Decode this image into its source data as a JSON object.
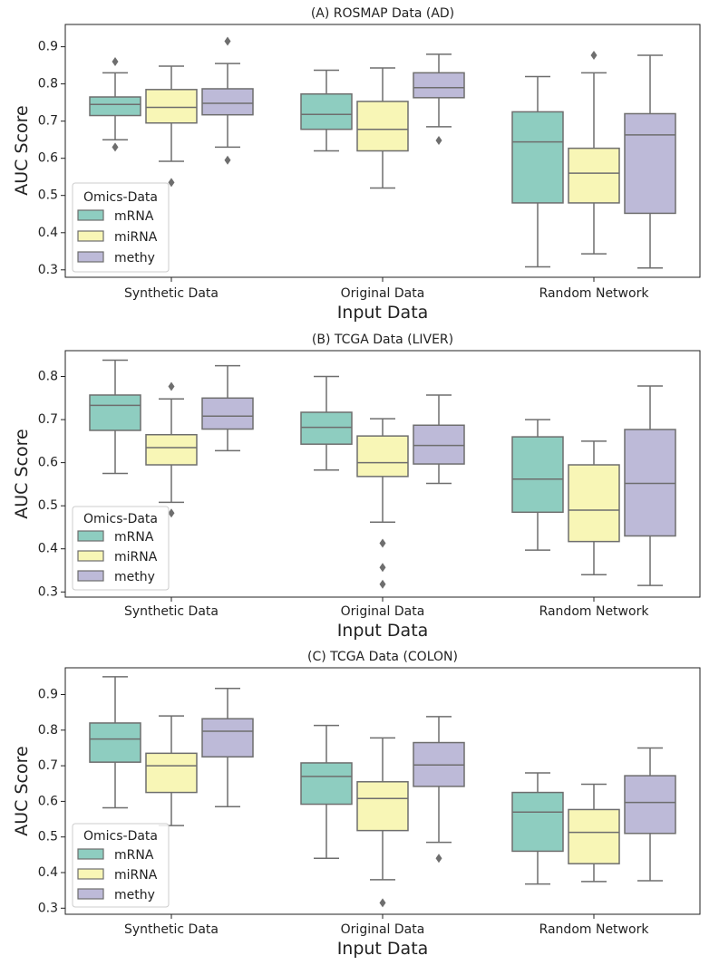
{
  "legend": {
    "title": "Omics-Data",
    "entries": [
      "mRNA",
      "miRNA",
      "methy"
    ]
  },
  "colors": {
    "mRNA": "#8ecdc0",
    "miRNA": "#f8f6b6",
    "methy": "#bdbad8",
    "edge": "#6e6e6e"
  },
  "chart_data": [
    {
      "type": "box",
      "title": "(A) ROSMAP Data (AD)",
      "xlabel": "Input Data",
      "ylabel": "AUC Score",
      "ylim": [
        0.28,
        0.96
      ],
      "yticks": [
        0.3,
        0.4,
        0.5,
        0.6,
        0.7,
        0.8,
        0.9
      ],
      "ytick_labels": [
        "0.3",
        "0.4",
        "0.5",
        "0.6",
        "0.7",
        "0.8",
        "0.9"
      ],
      "categories": [
        "Synthetic Data",
        "Original Data",
        "Random Network"
      ],
      "legend_position": "lower-left",
      "series": [
        {
          "name": "mRNA",
          "boxes": [
            {
              "whislo": 0.65,
              "q1": 0.715,
              "med": 0.745,
              "q3": 0.765,
              "whishi": 0.83,
              "fliers": [
                0.63,
                0.86
              ]
            },
            {
              "whislo": 0.62,
              "q1": 0.678,
              "med": 0.718,
              "q3": 0.773,
              "whishi": 0.837,
              "fliers": []
            },
            {
              "whislo": 0.308,
              "q1": 0.48,
              "med": 0.644,
              "q3": 0.725,
              "whishi": 0.82,
              "fliers": []
            }
          ]
        },
        {
          "name": "miRNA",
          "boxes": [
            {
              "whislo": 0.592,
              "q1": 0.695,
              "med": 0.737,
              "q3": 0.785,
              "whishi": 0.848,
              "fliers": [
                0.535
              ]
            },
            {
              "whislo": 0.52,
              "q1": 0.62,
              "med": 0.678,
              "q3": 0.753,
              "whishi": 0.843,
              "fliers": []
            },
            {
              "whislo": 0.343,
              "q1": 0.48,
              "med": 0.56,
              "q3": 0.627,
              "whishi": 0.83,
              "fliers": [
                0.877
              ]
            }
          ]
        },
        {
          "name": "methy",
          "boxes": [
            {
              "whislo": 0.63,
              "q1": 0.717,
              "med": 0.748,
              "q3": 0.787,
              "whishi": 0.855,
              "fliers": [
                0.595,
                0.915
              ]
            },
            {
              "whislo": 0.685,
              "q1": 0.763,
              "med": 0.79,
              "q3": 0.83,
              "whishi": 0.88,
              "fliers": [
                0.648
              ]
            },
            {
              "whislo": 0.305,
              "q1": 0.452,
              "med": 0.663,
              "q3": 0.72,
              "whishi": 0.877,
              "fliers": []
            }
          ]
        }
      ]
    },
    {
      "type": "box",
      "title": "(B) TCGA Data (LIVER)",
      "xlabel": "Input Data",
      "ylabel": "AUC Score",
      "ylim": [
        0.288,
        0.86
      ],
      "yticks": [
        0.3,
        0.4,
        0.5,
        0.6,
        0.7,
        0.8
      ],
      "ytick_labels": [
        "0.3",
        "0.4",
        "0.5",
        "0.6",
        "0.7",
        "0.8"
      ],
      "categories": [
        "Synthetic Data",
        "Original Data",
        "Random Network"
      ],
      "legend_position": "lower-left",
      "series": [
        {
          "name": "mRNA",
          "boxes": [
            {
              "whislo": 0.575,
              "q1": 0.675,
              "med": 0.733,
              "q3": 0.757,
              "whishi": 0.838,
              "fliers": []
            },
            {
              "whislo": 0.583,
              "q1": 0.643,
              "med": 0.682,
              "q3": 0.717,
              "whishi": 0.8,
              "fliers": []
            },
            {
              "whislo": 0.397,
              "q1": 0.485,
              "med": 0.562,
              "q3": 0.66,
              "whishi": 0.7,
              "fliers": []
            }
          ]
        },
        {
          "name": "miRNA",
          "boxes": [
            {
              "whislo": 0.508,
              "q1": 0.595,
              "med": 0.635,
              "q3": 0.665,
              "whishi": 0.748,
              "fliers": [
                0.483,
                0.777
              ]
            },
            {
              "whislo": 0.462,
              "q1": 0.568,
              "med": 0.6,
              "q3": 0.662,
              "whishi": 0.702,
              "fliers": [
                0.318,
                0.357,
                0.413
              ]
            },
            {
              "whislo": 0.34,
              "q1": 0.417,
              "med": 0.49,
              "q3": 0.595,
              "whishi": 0.65,
              "fliers": []
            }
          ]
        },
        {
          "name": "methy",
          "boxes": [
            {
              "whislo": 0.628,
              "q1": 0.678,
              "med": 0.708,
              "q3": 0.75,
              "whishi": 0.825,
              "fliers": []
            },
            {
              "whislo": 0.552,
              "q1": 0.597,
              "med": 0.64,
              "q3": 0.687,
              "whishi": 0.757,
              "fliers": []
            },
            {
              "whislo": 0.315,
              "q1": 0.43,
              "med": 0.552,
              "q3": 0.677,
              "whishi": 0.778,
              "fliers": []
            }
          ]
        }
      ]
    },
    {
      "type": "box",
      "title": "(C) TCGA Data (COLON)",
      "xlabel": "Input Data",
      "ylabel": "AUC Score",
      "ylim": [
        0.283,
        0.975
      ],
      "yticks": [
        0.3,
        0.4,
        0.5,
        0.6,
        0.7,
        0.8,
        0.9
      ],
      "ytick_labels": [
        "0.3",
        "0.4",
        "0.5",
        "0.6",
        "0.7",
        "0.8",
        "0.9"
      ],
      "categories": [
        "Synthetic Data",
        "Original Data",
        "Random Network"
      ],
      "legend_position": "lower-left",
      "series": [
        {
          "name": "mRNA",
          "boxes": [
            {
              "whislo": 0.582,
              "q1": 0.71,
              "med": 0.775,
              "q3": 0.82,
              "whishi": 0.95,
              "fliers": []
            },
            {
              "whislo": 0.44,
              "q1": 0.592,
              "med": 0.67,
              "q3": 0.708,
              "whishi": 0.813,
              "fliers": []
            },
            {
              "whislo": 0.368,
              "q1": 0.46,
              "med": 0.57,
              "q3": 0.625,
              "whishi": 0.68,
              "fliers": []
            }
          ]
        },
        {
          "name": "miRNA",
          "boxes": [
            {
              "whislo": 0.532,
              "q1": 0.625,
              "med": 0.7,
              "q3": 0.735,
              "whishi": 0.84,
              "fliers": []
            },
            {
              "whislo": 0.38,
              "q1": 0.518,
              "med": 0.608,
              "q3": 0.655,
              "whishi": 0.778,
              "fliers": [
                0.315
              ]
            },
            {
              "whislo": 0.375,
              "q1": 0.425,
              "med": 0.513,
              "q3": 0.577,
              "whishi": 0.648,
              "fliers": []
            }
          ]
        },
        {
          "name": "methy",
          "boxes": [
            {
              "whislo": 0.585,
              "q1": 0.725,
              "med": 0.797,
              "q3": 0.832,
              "whishi": 0.917,
              "fliers": []
            },
            {
              "whislo": 0.485,
              "q1": 0.642,
              "med": 0.702,
              "q3": 0.765,
              "whishi": 0.838,
              "fliers": [
                0.44
              ]
            },
            {
              "whislo": 0.377,
              "q1": 0.51,
              "med": 0.597,
              "q3": 0.672,
              "whishi": 0.75,
              "fliers": []
            }
          ]
        }
      ]
    }
  ]
}
